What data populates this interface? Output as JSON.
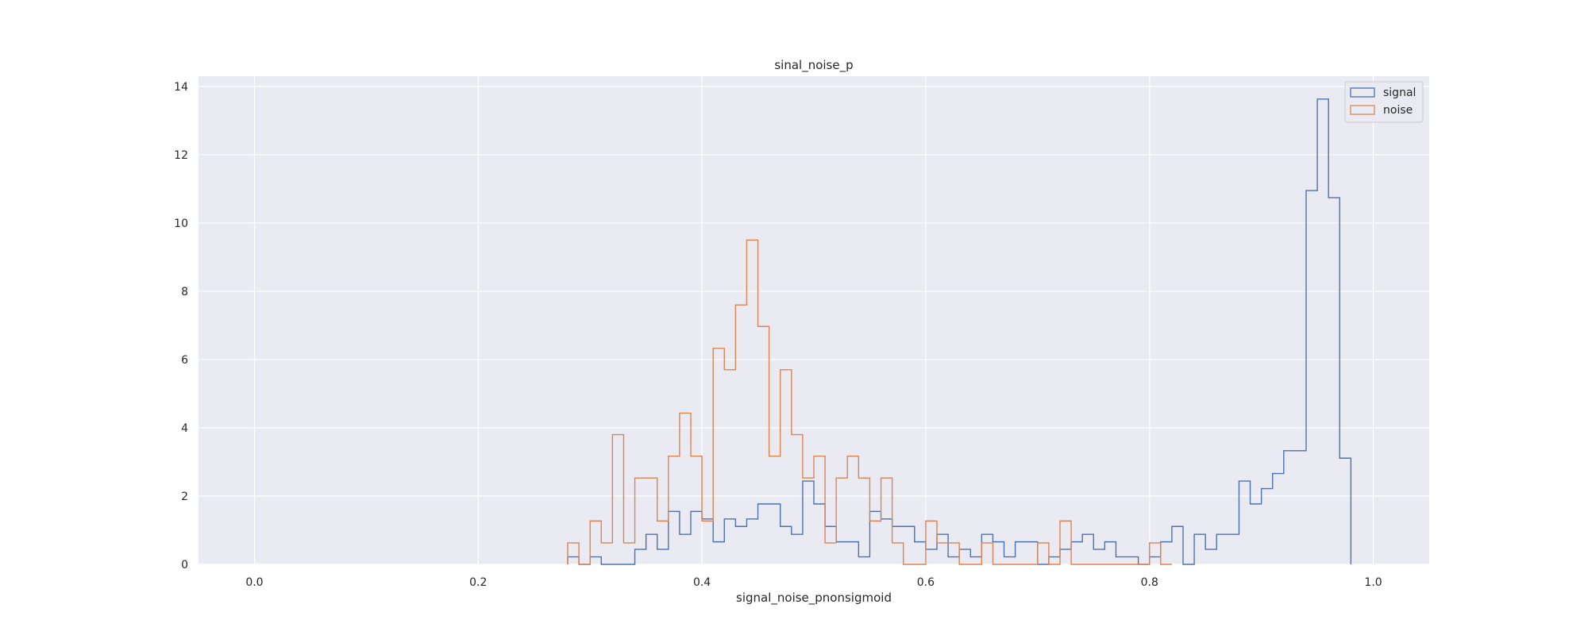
{
  "chart_data": {
    "type": "histogram-step",
    "title": "sinal_noise_p",
    "xlabel": "signal_noise_pnonsigmoid",
    "ylabel": "",
    "xlim": [
      -0.05,
      1.05
    ],
    "ylim": [
      0,
      14.3
    ],
    "xticks": [
      0.0,
      0.2,
      0.4,
      0.6,
      0.8,
      1.0
    ],
    "xtick_labels": [
      "0.0",
      "0.2",
      "0.4",
      "0.6",
      "0.8",
      "1.0"
    ],
    "yticks": [
      0,
      2,
      4,
      6,
      8,
      10,
      12,
      14
    ],
    "ytick_labels": [
      "0",
      "2",
      "4",
      "6",
      "8",
      "10",
      "12",
      "14"
    ],
    "grid": true,
    "legend_position": "top-right",
    "bin_width": 0.01,
    "series": [
      {
        "name": "signal",
        "color": "#4c72b0",
        "bins_start": 0.28,
        "values": [
          0.22,
          0,
          0.22,
          0,
          0,
          0,
          0.44,
          0.88,
          0.44,
          1.55,
          0.88,
          1.55,
          1.33,
          0.66,
          1.33,
          1.11,
          1.33,
          1.77,
          1.77,
          1.11,
          0.88,
          2.44,
          1.77,
          1.11,
          0.66,
          0.66,
          0.22,
          1.55,
          1.33,
          1.11,
          1.11,
          0.66,
          0.44,
          0.88,
          0.22,
          0.44,
          0.22,
          0.88,
          0.66,
          0.22,
          0.66,
          0.66,
          0,
          0.22,
          0.44,
          0.66,
          0.88,
          0.44,
          0.66,
          0.22,
          0.22,
          0,
          0.22,
          0.66,
          1.11,
          0,
          0.88,
          0.44,
          0.88,
          0.88,
          2.44,
          1.77,
          2.22,
          2.66,
          3.33,
          3.33,
          10.95,
          13.63,
          10.74,
          3.11
        ]
      },
      {
        "name": "noise",
        "color": "#dd8452",
        "bins_start": 0.28,
        "values": [
          0.63,
          0,
          1.27,
          0.63,
          3.8,
          0.63,
          2.53,
          2.53,
          1.27,
          3.17,
          4.43,
          3.17,
          1.27,
          6.33,
          5.7,
          7.6,
          9.5,
          6.97,
          3.17,
          5.7,
          3.8,
          2.53,
          3.17,
          0.63,
          2.53,
          3.17,
          2.53,
          1.27,
          2.53,
          0.63,
          0,
          0,
          1.27,
          0.63,
          0.63,
          0,
          0,
          0.63,
          0,
          0,
          0,
          0,
          0.63,
          0,
          1.27,
          0,
          0,
          0,
          0,
          0,
          0,
          0,
          0.63,
          0
        ]
      }
    ]
  }
}
